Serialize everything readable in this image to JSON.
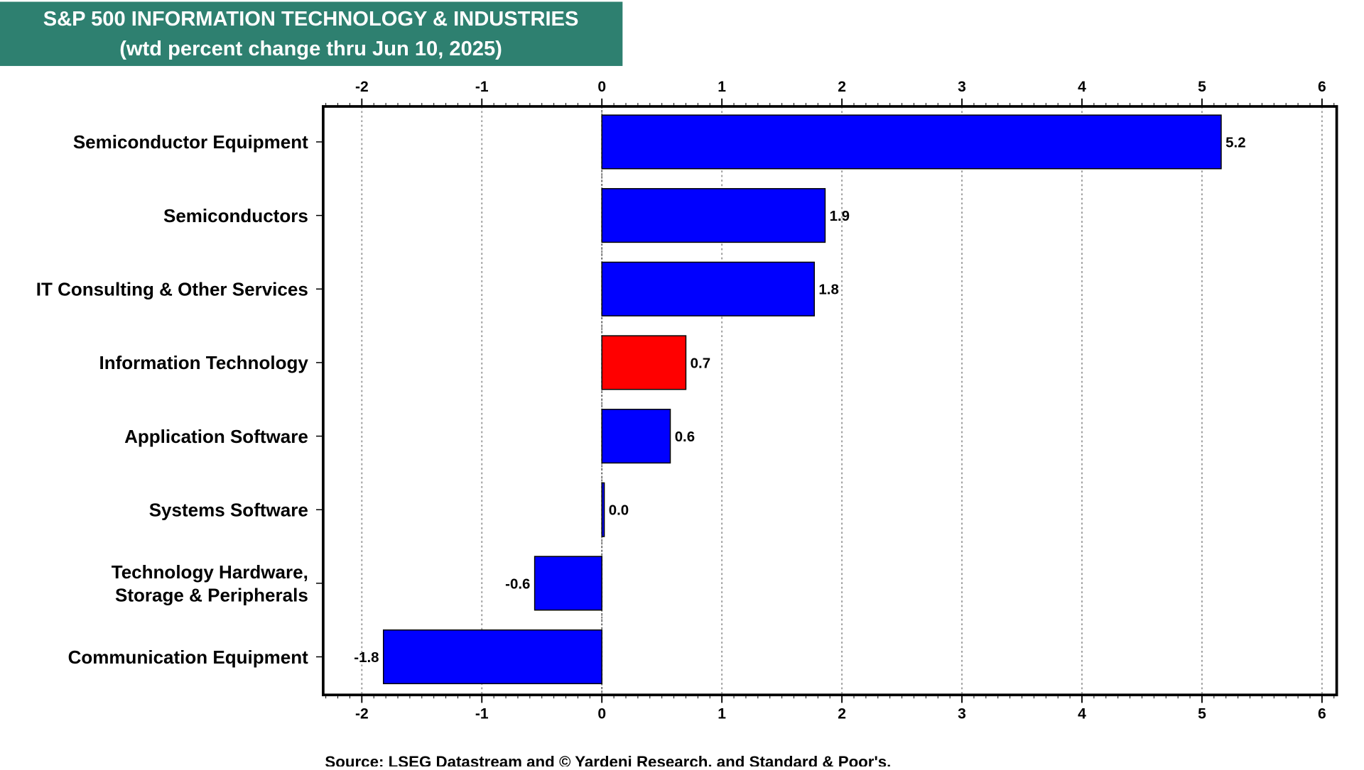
{
  "title": {
    "line1": "S&P 500 INFORMATION TECHNOLOGY & INDUSTRIES",
    "line2": "(wtd percent change thru Jun 10, 2025)"
  },
  "source": "Source: LSEG Datastream and © Yardeni Research, and Standard & Poor's.",
  "colors": {
    "title_bg": "#2e8070",
    "title_text": "#ffffff",
    "bar_default": "#0000ff",
    "bar_highlight": "#ff0000",
    "grid": "#999999",
    "axis": "#000000"
  },
  "chart_data": {
    "type": "bar",
    "orientation": "horizontal",
    "title": "S&P 500 INFORMATION TECHNOLOGY & INDUSTRIES (wtd percent change thru Jun 10, 2025)",
    "xlim": [
      -2.5,
      6.3
    ],
    "xticks": [
      -2,
      -1,
      0,
      1,
      2,
      3,
      4,
      5,
      6
    ],
    "grid": true,
    "categories": [
      [
        "Semiconductor Equipment"
      ],
      [
        "Semiconductors"
      ],
      [
        "IT Consulting & Other Services"
      ],
      [
        "Information Technology"
      ],
      [
        "Application Software"
      ],
      [
        "Systems Software"
      ],
      [
        "Technology Hardware,",
        "Storage & Peripherals"
      ],
      [
        "Communication Equipment"
      ]
    ],
    "values": [
      5.16,
      1.86,
      1.77,
      0.7,
      0.57,
      0.02,
      -0.56,
      -1.82
    ],
    "value_labels": [
      "5.2",
      "1.9",
      "1.8",
      "0.7",
      "0.6",
      "0.0",
      "-0.6",
      "-1.8"
    ],
    "highlight_index": 3
  }
}
